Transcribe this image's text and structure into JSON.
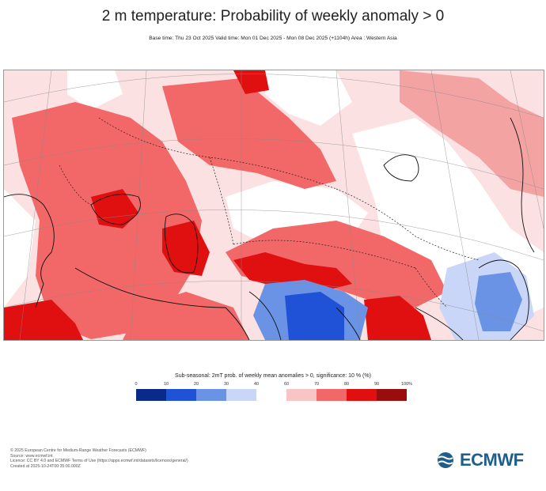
{
  "header": {
    "title": "2 m temperature: Probability of weekly anomaly > 0",
    "subtitle": "Base time: Thu 23 Oct 2025 Valid time: Mon 01 Dec 2025 - Mon 08 Dec 2025 (+1104h) Area : Western Asia"
  },
  "legend": {
    "title": "Sub-seasonal: 2mT prob. of weekly mean anomalies > 0, significance: 10 % (%)",
    "ticks": [
      "0",
      "10",
      "20",
      "30",
      "40",
      "60",
      "70",
      "80",
      "90",
      "100%"
    ],
    "bins": [
      {
        "from": 0,
        "to": 10,
        "color": "#0a2a8a"
      },
      {
        "from": 10,
        "to": 20,
        "color": "#1f52d6"
      },
      {
        "from": 20,
        "to": 30,
        "color": "#6a93e6"
      },
      {
        "from": 30,
        "to": 40,
        "color": "#c9d6f7"
      },
      {
        "from": 40,
        "to": 60,
        "color": "#ffffff"
      },
      {
        "from": 60,
        "to": 70,
        "color": "#f9c4c4"
      },
      {
        "from": 70,
        "to": 80,
        "color": "#f26767"
      },
      {
        "from": 80,
        "to": 90,
        "color": "#e01010"
      },
      {
        "from": 90,
        "to": 100,
        "color": "#9a0d0d"
      }
    ]
  },
  "footer": {
    "lines": [
      "© 2025 European Centre for Medium-Range Weather Forecasts (ECMWF)",
      "Source: www.ecmwf.int",
      "Licence: CC BY 4.0 and ECMWF Terms of Use (https://apps.ecmwf.int/datasets/licences/general/)",
      "Created at 2025-10-24T00:35:00.000Z"
    ]
  },
  "logo": {
    "text": "ECMWF"
  }
}
